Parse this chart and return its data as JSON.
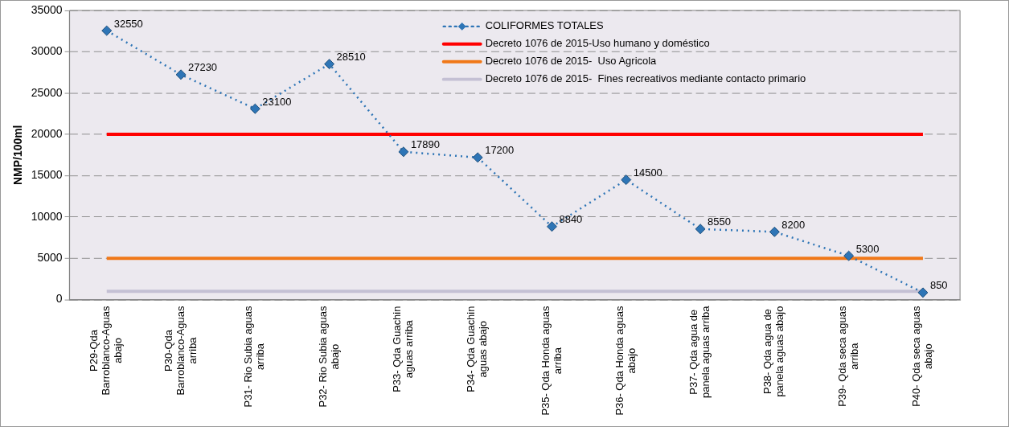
{
  "chart_data": {
    "type": "line",
    "ylabel": "NMP/100ml",
    "categories": [
      "P29-Qda Barroblanco-Aguas abajo",
      "P30-Qda Barroblanco-Aguas arriba",
      "P31- Rio Subia aguas arriba",
      "P32- Rio Subia aguas abajo",
      "P33- Qda Guachin aguas arriba",
      "P34- Qda Guachin aguas abajo",
      "P35- Qda Honda aguas arriba",
      "P36- Qda Honda aguas abajo",
      "P37- Qda agua de panela aguas arriba",
      "P38- Qda agua de panela aguas abajo",
      "P39- Qda seca aguas arriba",
      "P40- Qda seca aguas abajo"
    ],
    "series": [
      {
        "name": "COLIFORMES TOTALES",
        "color": "#2e75b6",
        "values": [
          32550,
          27230,
          23100,
          28510,
          17890,
          17200,
          8840,
          14500,
          8550,
          8200,
          5300,
          850
        ],
        "value_labels": [
          "32550",
          "27230",
          "23100",
          "28510",
          "17890",
          "17200",
          "8840",
          "14500",
          "8550",
          "8200",
          "5300",
          "850"
        ]
      },
      {
        "name": "Decreto 1076 de 2015-Uso humano y doméstico",
        "color": "#ff0000",
        "values": [
          20000,
          20000,
          20000,
          20000,
          20000,
          20000,
          20000,
          20000,
          20000,
          20000,
          20000,
          20000
        ],
        "marker": "none",
        "line_style": "solid"
      },
      {
        "name": "Decreto 1076 de 2015-  Uso Agricola",
        "color": "#f07818",
        "values": [
          5000,
          5000,
          5000,
          5000,
          5000,
          5000,
          5000,
          5000,
          5000,
          5000,
          5000,
          5000
        ],
        "marker": "none",
        "line_style": "solid"
      },
      {
        "name": "Decreto 1076 de 2015-  Fines recreativos mediante contacto primario",
        "color": "#c4c0d4",
        "values": [
          1000,
          1000,
          1000,
          1000,
          1000,
          1000,
          1000,
          1000,
          1000,
          1000,
          1000,
          1000
        ],
        "marker": "none",
        "line_style": "solid"
      }
    ],
    "marker": "diamond",
    "line_style": "dotted",
    "ylim": [
      0,
      35000
    ],
    "yticks": [
      0,
      5000,
      10000,
      15000,
      20000,
      25000,
      30000,
      35000
    ],
    "grid": "y",
    "legend": "top"
  }
}
